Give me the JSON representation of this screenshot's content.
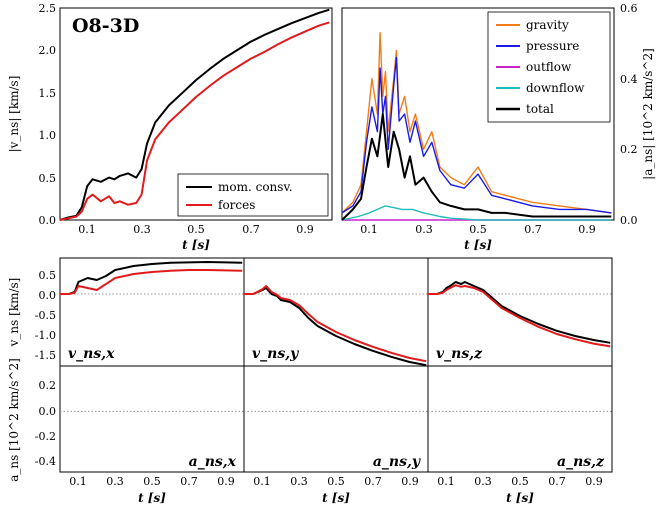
{
  "figure_label": "O8-3D",
  "colors": {
    "gravity": "#f07d1a",
    "pressure": "#1a1ae6",
    "outflow": "#cc22cc",
    "downflow": "#22bbbb",
    "total": "#000000",
    "mom_consv": "#000000",
    "forces": "#e11b1b"
  },
  "chart_data": [
    {
      "id": "top-left",
      "type": "line",
      "title": "O8-3D",
      "xlabel": "t [s]",
      "ylabel": "|v_ns| [km/s]",
      "xlim": [
        0.0,
        1.0
      ],
      "ylim": [
        0.0,
        2.5
      ],
      "xticks": [
        "0.1",
        "0.3",
        "0.5",
        "0.7",
        "0.9"
      ],
      "yticks": [
        "0.0",
        "0.5",
        "1.0",
        "1.5",
        "2.0",
        "2.5"
      ],
      "legend": [
        "mom. consv.",
        "forces"
      ],
      "legend_position": "lower-right",
      "series": [
        {
          "name": "mom. consv.",
          "color_key": "mom_consv",
          "x": [
            0.0,
            0.03,
            0.06,
            0.08,
            0.1,
            0.12,
            0.15,
            0.18,
            0.2,
            0.22,
            0.25,
            0.28,
            0.3,
            0.32,
            0.35,
            0.4,
            0.45,
            0.5,
            0.55,
            0.6,
            0.65,
            0.7,
            0.75,
            0.8,
            0.85,
            0.9,
            0.95,
            0.99
          ],
          "y": [
            0.0,
            0.03,
            0.05,
            0.15,
            0.4,
            0.48,
            0.45,
            0.5,
            0.48,
            0.52,
            0.55,
            0.5,
            0.6,
            0.9,
            1.15,
            1.35,
            1.5,
            1.65,
            1.78,
            1.9,
            2.0,
            2.1,
            2.18,
            2.25,
            2.32,
            2.38,
            2.44,
            2.48
          ]
        },
        {
          "name": "forces",
          "color_key": "forces",
          "x": [
            0.0,
            0.03,
            0.06,
            0.08,
            0.1,
            0.12,
            0.15,
            0.18,
            0.2,
            0.22,
            0.25,
            0.28,
            0.3,
            0.32,
            0.35,
            0.4,
            0.45,
            0.5,
            0.55,
            0.6,
            0.65,
            0.7,
            0.75,
            0.8,
            0.85,
            0.9,
            0.95,
            0.99
          ],
          "y": [
            0.0,
            0.02,
            0.04,
            0.1,
            0.25,
            0.3,
            0.22,
            0.28,
            0.2,
            0.22,
            0.18,
            0.2,
            0.3,
            0.7,
            0.95,
            1.15,
            1.3,
            1.45,
            1.58,
            1.7,
            1.8,
            1.9,
            1.98,
            2.07,
            2.15,
            2.22,
            2.29,
            2.33
          ]
        }
      ]
    },
    {
      "id": "top-right",
      "type": "line",
      "xlabel": "t [s]",
      "ylabel": "|a_ns| [10^2 km/s^2]",
      "xlim": [
        0.0,
        1.0
      ],
      "ylim": [
        0.0,
        0.6
      ],
      "xticks": [
        "0.1",
        "0.3",
        "0.5",
        "0.7",
        "0.9"
      ],
      "yticks": [
        "0.0",
        "0.2",
        "0.4",
        "0.6"
      ],
      "legend": [
        "gravity",
        "pressure",
        "outflow",
        "downflow",
        "total"
      ],
      "legend_position": "upper-right",
      "series": [
        {
          "name": "gravity",
          "color_key": "gravity",
          "x": [
            0.0,
            0.04,
            0.07,
            0.09,
            0.11,
            0.13,
            0.14,
            0.15,
            0.16,
            0.17,
            0.19,
            0.2,
            0.21,
            0.23,
            0.25,
            0.27,
            0.3,
            0.33,
            0.36,
            0.4,
            0.45,
            0.5,
            0.55,
            0.6,
            0.7,
            0.8,
            0.9,
            0.99
          ],
          "y": [
            0.02,
            0.05,
            0.1,
            0.25,
            0.4,
            0.3,
            0.53,
            0.35,
            0.42,
            0.25,
            0.4,
            0.48,
            0.3,
            0.35,
            0.25,
            0.3,
            0.2,
            0.25,
            0.15,
            0.12,
            0.1,
            0.15,
            0.08,
            0.07,
            0.05,
            0.04,
            0.03,
            0.02
          ]
        },
        {
          "name": "pressure",
          "color_key": "pressure",
          "x": [
            0.0,
            0.04,
            0.07,
            0.09,
            0.11,
            0.13,
            0.14,
            0.15,
            0.16,
            0.17,
            0.19,
            0.2,
            0.21,
            0.23,
            0.25,
            0.27,
            0.3,
            0.33,
            0.36,
            0.4,
            0.45,
            0.5,
            0.55,
            0.6,
            0.7,
            0.8,
            0.9,
            0.99
          ],
          "y": [
            0.02,
            0.04,
            0.08,
            0.22,
            0.32,
            0.25,
            0.43,
            0.3,
            0.35,
            0.2,
            0.38,
            0.46,
            0.28,
            0.3,
            0.22,
            0.28,
            0.18,
            0.22,
            0.14,
            0.1,
            0.09,
            0.13,
            0.07,
            0.06,
            0.04,
            0.03,
            0.03,
            0.02
          ]
        },
        {
          "name": "outflow",
          "color_key": "outflow",
          "x": [
            0.0,
            0.2,
            0.4,
            0.6,
            0.8,
            0.99
          ],
          "y": [
            0.0,
            0.0,
            0.0,
            0.0,
            0.0,
            0.0
          ]
        },
        {
          "name": "downflow",
          "color_key": "downflow",
          "x": [
            0.0,
            0.06,
            0.1,
            0.13,
            0.16,
            0.19,
            0.22,
            0.26,
            0.3,
            0.36,
            0.4,
            0.5,
            0.99
          ],
          "y": [
            0.0,
            0.01,
            0.02,
            0.03,
            0.04,
            0.035,
            0.03,
            0.03,
            0.02,
            0.01,
            0.005,
            0.0,
            0.0
          ]
        },
        {
          "name": "total",
          "color_key": "total",
          "x": [
            0.0,
            0.04,
            0.07,
            0.09,
            0.11,
            0.13,
            0.15,
            0.17,
            0.19,
            0.21,
            0.23,
            0.25,
            0.27,
            0.3,
            0.33,
            0.36,
            0.4,
            0.45,
            0.5,
            0.55,
            0.6,
            0.7,
            0.8,
            0.9,
            0.99
          ],
          "y": [
            0.0,
            0.03,
            0.06,
            0.15,
            0.23,
            0.18,
            0.3,
            0.15,
            0.25,
            0.2,
            0.12,
            0.18,
            0.1,
            0.12,
            0.08,
            0.05,
            0.04,
            0.03,
            0.03,
            0.02,
            0.02,
            0.01,
            0.01,
            0.01,
            0.01
          ]
        }
      ]
    },
    {
      "id": "vel-components",
      "type": "line",
      "ylabel": "v_ns [km/s]",
      "xlim": [
        0.0,
        1.0
      ],
      "ylim": [
        -1.8,
        0.9
      ],
      "yticks": [
        "0.5",
        "0.0",
        "-0.5",
        "-1.0",
        "-1.5"
      ],
      "zero_line": true,
      "panels": [
        {
          "label": "v_ns,x",
          "series": [
            {
              "name": "mom. consv.",
              "color_key": "mom_consv",
              "x": [
                0.0,
                0.05,
                0.08,
                0.1,
                0.15,
                0.2,
                0.25,
                0.3,
                0.4,
                0.5,
                0.6,
                0.7,
                0.8,
                0.9,
                0.99
              ],
              "y": [
                0.0,
                0.0,
                0.05,
                0.3,
                0.4,
                0.35,
                0.45,
                0.6,
                0.7,
                0.75,
                0.78,
                0.79,
                0.8,
                0.79,
                0.78
              ]
            },
            {
              "name": "forces",
              "color_key": "forces",
              "x": [
                0.0,
                0.05,
                0.08,
                0.1,
                0.15,
                0.2,
                0.25,
                0.3,
                0.4,
                0.5,
                0.6,
                0.7,
                0.8,
                0.9,
                0.99
              ],
              "y": [
                0.0,
                0.0,
                0.03,
                0.2,
                0.15,
                0.1,
                0.25,
                0.4,
                0.5,
                0.55,
                0.58,
                0.6,
                0.6,
                0.59,
                0.58
              ]
            }
          ]
        },
        {
          "label": "v_ns,y",
          "series": [
            {
              "name": "mom. consv.",
              "color_key": "mom_consv",
              "x": [
                0.0,
                0.05,
                0.1,
                0.12,
                0.15,
                0.18,
                0.2,
                0.25,
                0.3,
                0.35,
                0.4,
                0.5,
                0.6,
                0.7,
                0.8,
                0.9,
                0.99
              ],
              "y": [
                0.0,
                0.0,
                0.1,
                0.15,
                0.0,
                -0.05,
                -0.15,
                -0.2,
                -0.35,
                -0.6,
                -0.8,
                -1.05,
                -1.25,
                -1.42,
                -1.57,
                -1.7,
                -1.78
              ]
            },
            {
              "name": "forces",
              "color_key": "forces",
              "x": [
                0.0,
                0.05,
                0.1,
                0.12,
                0.15,
                0.18,
                0.2,
                0.25,
                0.3,
                0.35,
                0.4,
                0.5,
                0.6,
                0.7,
                0.8,
                0.9,
                0.99
              ],
              "y": [
                0.0,
                0.0,
                0.12,
                0.2,
                0.05,
                -0.02,
                -0.1,
                -0.15,
                -0.28,
                -0.5,
                -0.7,
                -0.95,
                -1.15,
                -1.32,
                -1.47,
                -1.6,
                -1.68
              ]
            }
          ]
        },
        {
          "label": "v_ns,z",
          "series": [
            {
              "name": "mom. consv.",
              "color_key": "mom_consv",
              "x": [
                0.0,
                0.05,
                0.08,
                0.1,
                0.12,
                0.15,
                0.18,
                0.2,
                0.25,
                0.3,
                0.35,
                0.4,
                0.5,
                0.6,
                0.7,
                0.8,
                0.9,
                0.99
              ],
              "y": [
                0.0,
                0.0,
                0.05,
                0.15,
                0.2,
                0.3,
                0.25,
                0.3,
                0.2,
                0.1,
                -0.1,
                -0.3,
                -0.55,
                -0.75,
                -0.92,
                -1.05,
                -1.15,
                -1.22
              ]
            },
            {
              "name": "forces",
              "color_key": "forces",
              "x": [
                0.0,
                0.05,
                0.08,
                0.1,
                0.12,
                0.15,
                0.18,
                0.2,
                0.25,
                0.3,
                0.35,
                0.4,
                0.5,
                0.6,
                0.7,
                0.8,
                0.9,
                0.99
              ],
              "y": [
                0.0,
                0.0,
                0.03,
                0.1,
                0.15,
                0.22,
                0.18,
                0.2,
                0.15,
                0.05,
                -0.15,
                -0.35,
                -0.6,
                -0.82,
                -1.0,
                -1.13,
                -1.24,
                -1.31
              ]
            }
          ]
        }
      ]
    },
    {
      "id": "acc-components",
      "type": "line",
      "xlabel": "t [s]",
      "ylabel": "a_ns [10^2 km/s^2]",
      "xlim": [
        0.0,
        1.0
      ],
      "ylim": [
        -0.48,
        0.36
      ],
      "yticks": [
        "0.2",
        "0.0",
        "-0.2",
        "-0.4"
      ],
      "xticks": [
        "0.1",
        "0.3",
        "0.5",
        "0.7",
        "0.9"
      ],
      "zero_line": true,
      "panels": [
        {
          "label": "a_ns,x"
        },
        {
          "label": "a_ns,y"
        },
        {
          "label": "a_ns,z"
        }
      ]
    }
  ]
}
